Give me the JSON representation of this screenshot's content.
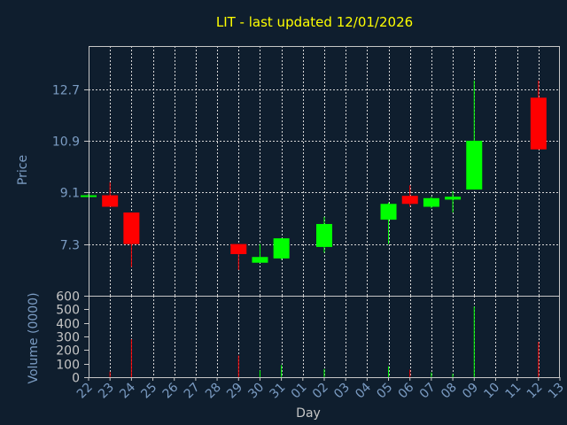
{
  "colors": {
    "background": "#0f1e2e",
    "title": "#ffff00",
    "axis_text": "#7b9cc3",
    "axis_line": "#c6c6c6",
    "grid": "#d6d6d6",
    "up": "#00ff00",
    "down": "#ff0000"
  },
  "chart_data": {
    "type": "candlestick",
    "title": "LIT - last updated 12/01/2026",
    "xlabel": "Day",
    "ylabel": "Price",
    "volume_label": "Volume (0000)",
    "x_ticks": [
      "22",
      "23",
      "24",
      "25",
      "26",
      "27",
      "28",
      "29",
      "30",
      "31",
      "01",
      "02",
      "03",
      "04",
      "05",
      "06",
      "07",
      "08",
      "09",
      "10",
      "11",
      "12",
      "13"
    ],
    "price_ticks": [
      7.3,
      10.9,
      9.1,
      12.7
    ],
    "price_tick_labels": [
      "7.3",
      "10.9",
      "9.1",
      "12.7"
    ],
    "price_ylim": [
      5.5,
      14.2
    ],
    "volume_ticks": [
      0,
      100,
      200,
      300,
      400,
      500,
      600
    ],
    "volume_tick_labels": [
      "0",
      "100",
      "200",
      "300",
      "400",
      "500",
      "600"
    ],
    "volume_ylim": [
      0,
      600
    ],
    "grid": true,
    "candles": [
      {
        "x": "22",
        "open": 9.0,
        "high": 9.05,
        "low": 8.98,
        "close": 9.0,
        "volume": 0
      },
      {
        "x": "23",
        "open": 9.0,
        "high": 9.45,
        "low": 8.6,
        "close": 8.6,
        "volume": 40
      },
      {
        "x": "24",
        "open": 8.4,
        "high": 8.4,
        "low": 6.5,
        "close": 7.3,
        "volume": 280
      },
      {
        "x": "29",
        "open": 7.3,
        "high": 7.3,
        "low": 6.4,
        "close": 6.95,
        "volume": 160
      },
      {
        "x": "30",
        "open": 6.65,
        "high": 7.3,
        "low": 6.65,
        "close": 6.85,
        "volume": 50
      },
      {
        "x": "31",
        "open": 6.8,
        "high": 7.5,
        "low": 6.75,
        "close": 7.5,
        "volume": 90
      },
      {
        "x": "02",
        "open": 7.2,
        "high": 8.25,
        "low": 7.0,
        "close": 8.0,
        "volume": 60
      },
      {
        "x": "05",
        "open": 8.15,
        "high": 8.75,
        "low": 7.3,
        "close": 8.7,
        "volume": 80
      },
      {
        "x": "06",
        "open": 8.98,
        "high": 9.35,
        "low": 8.6,
        "close": 8.7,
        "volume": 55
      },
      {
        "x": "07",
        "open": 8.6,
        "high": 8.95,
        "low": 8.55,
        "close": 8.9,
        "volume": 35
      },
      {
        "x": "08",
        "open": 8.85,
        "high": 9.15,
        "low": 8.4,
        "close": 8.95,
        "volume": 25
      },
      {
        "x": "09",
        "open": 9.2,
        "high": 13.0,
        "low": 9.2,
        "close": 10.9,
        "volume": 520
      },
      {
        "x": "12",
        "open": 12.4,
        "high": 13.0,
        "low": 10.6,
        "close": 10.6,
        "volume": 260
      }
    ]
  }
}
